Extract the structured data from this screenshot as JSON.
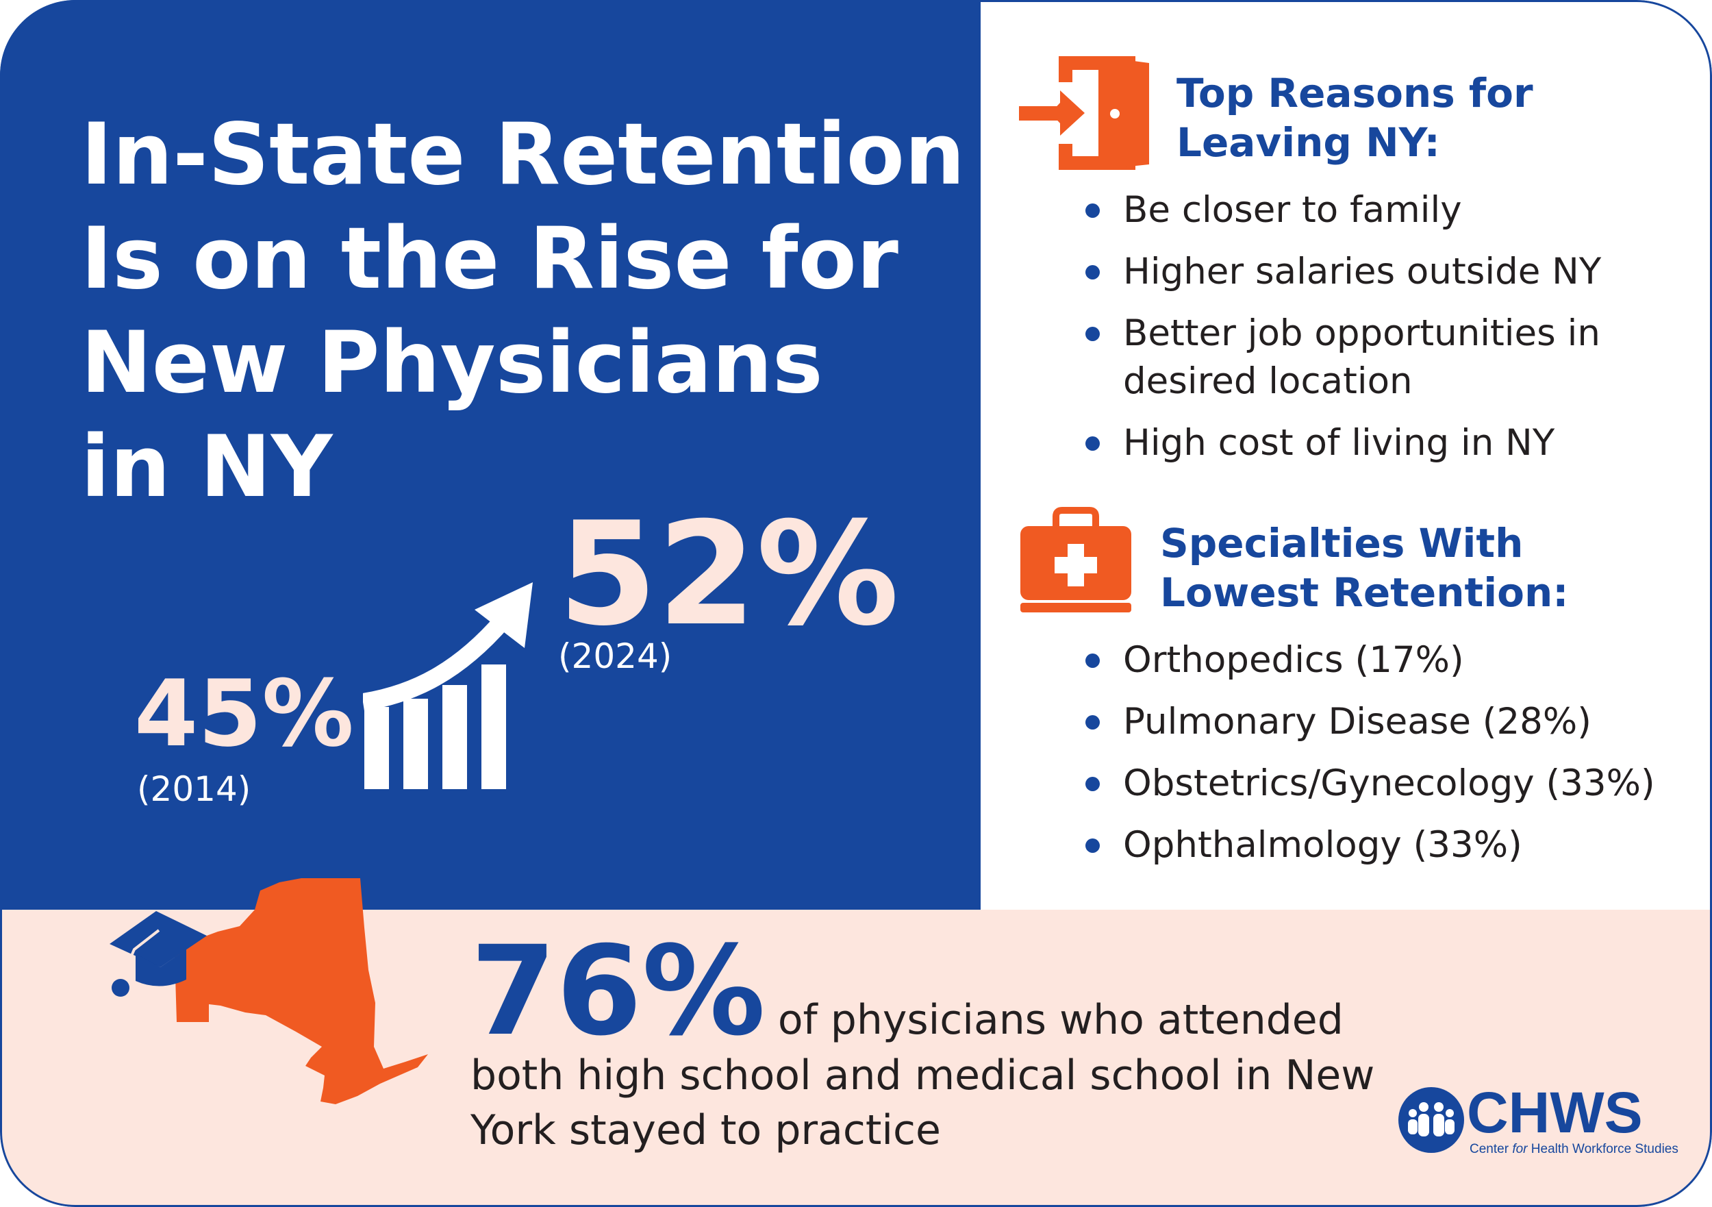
{
  "title": {
    "lines": [
      "In-State Retention",
      "Is on the Rise for",
      "New Physicians",
      "in NY"
    ]
  },
  "retention_change": {
    "current": {
      "value": "52%",
      "year": "(2024)"
    },
    "previous": {
      "value": "45%",
      "year": "(2014)"
    }
  },
  "reasons_section": {
    "heading_lines": [
      "Top Reasons for",
      "Leaving NY:"
    ],
    "items": [
      [
        "Be closer to family"
      ],
      [
        "Higher salaries outside NY"
      ],
      [
        "Better job opportunities in",
        "desired location"
      ],
      [
        "High cost of living in NY"
      ]
    ]
  },
  "specialties_section": {
    "heading_lines": [
      "Specialties With",
      "Lowest Retention:"
    ],
    "items": [
      "Orthopedics (17%)",
      "Pulmonary Disease (28%)",
      "Obstetrics/Gynecology (33%)",
      "Ophthalmology (33%)"
    ]
  },
  "bottom_stat": {
    "value": "76%",
    "text": "of physicians who attended both high school and medical school in New York stayed to practice"
  },
  "logo": {
    "acronym": "CHWS",
    "prefix": "Center ",
    "italic_word": "for",
    "suffix": " Health Workforce Studies"
  },
  "colors": {
    "brand_blue": "#17479d",
    "accent_orange": "#f05a22",
    "light_peach": "#fde6de",
    "text_dark": "#231f20"
  },
  "icons": {
    "reasons": "exit-door-icon",
    "specialties": "medical-kit-icon",
    "trend": "growth-chart-icon",
    "map": "new-york-state-icon",
    "graduation": "graduation-cap-icon"
  }
}
